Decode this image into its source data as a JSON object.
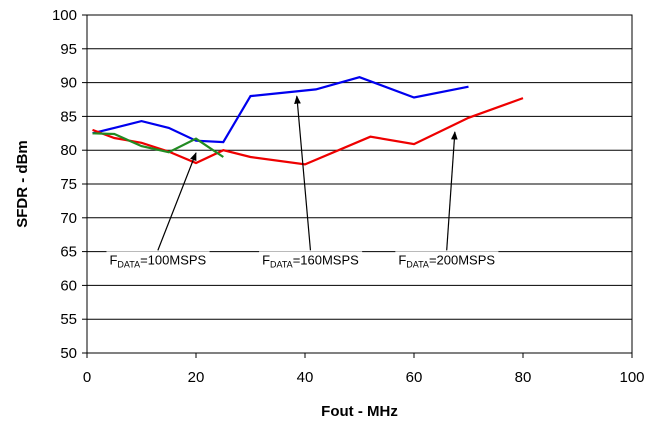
{
  "chart_data": {
    "type": "line",
    "xlabel": "Fout - MHz",
    "ylabel": "SFDR - dBm",
    "xlim": [
      0,
      100
    ],
    "ylim": [
      50,
      100
    ],
    "xticks": [
      0,
      20,
      40,
      60,
      80,
      100
    ],
    "yticks": [
      50,
      55,
      60,
      65,
      70,
      75,
      80,
      85,
      90,
      95,
      100
    ],
    "grid": "horizontal",
    "legend": "none",
    "series": [
      {
        "color": "#0000ee",
        "x": [
          1,
          5,
          10,
          15,
          20,
          25,
          30,
          42,
          50,
          60,
          70
        ],
        "y": [
          82.5,
          83.3,
          84.3,
          83.3,
          81.4,
          81.2,
          88.0,
          89.0,
          90.8,
          87.8,
          89.4
        ]
      },
      {
        "color": "#ee0000",
        "x": [
          1,
          5,
          10,
          15,
          20,
          25,
          30,
          40,
          52,
          60,
          70,
          80
        ],
        "y": [
          83.0,
          81.8,
          81.1,
          79.8,
          78.1,
          80.0,
          79.0,
          77.9,
          82.0,
          80.9,
          84.8,
          87.7
        ]
      },
      {
        "color": "#228b22",
        "x": [
          1,
          5,
          10,
          15,
          20,
          25
        ],
        "y": [
          82.5,
          82.4,
          80.6,
          79.7,
          81.7,
          79.0
        ]
      }
    ],
    "annotations": [
      {
        "prefix": "F",
        "sub": "DATA",
        "suffix": "=100MSPS",
        "text_x": 13,
        "text_y": 64,
        "arrow_to_x": 20,
        "arrow_to_y": 79.6
      },
      {
        "prefix": "F",
        "sub": "DATA",
        "suffix": "=160MSPS",
        "text_x": 41,
        "text_y": 64,
        "arrow_to_x": 38.5,
        "arrow_to_y": 88.0
      },
      {
        "prefix": "F",
        "sub": "DATA",
        "suffix": "=200MSPS",
        "text_x": 66,
        "text_y": 64,
        "arrow_to_x": 67.5,
        "arrow_to_y": 82.7
      }
    ]
  }
}
